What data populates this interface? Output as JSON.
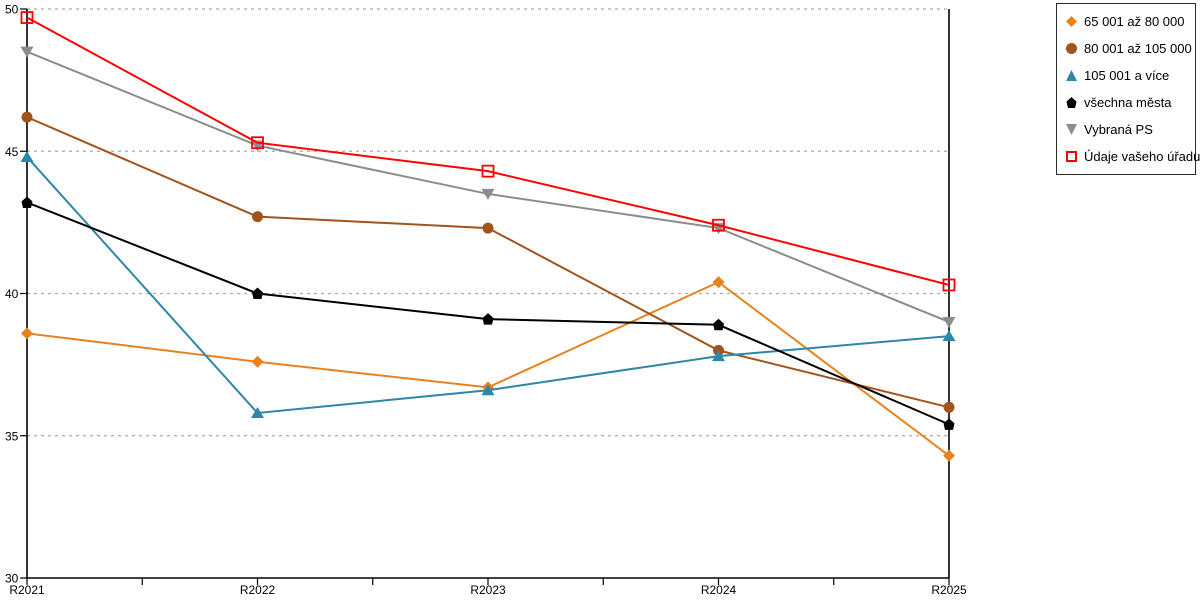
{
  "chart_data": {
    "type": "line",
    "title": "",
    "xlabel": "",
    "ylabel": "",
    "categories": [
      "R2021",
      "R2022",
      "R2023",
      "R2024",
      "R2025"
    ],
    "series": [
      {
        "name": "65 001 až 80 000",
        "marker": "diamond",
        "color": "#E8821E",
        "values": [
          38.6,
          37.6,
          36.7,
          40.4,
          34.3
        ]
      },
      {
        "name": "80 001 až 105 000",
        "marker": "circle",
        "color": "#A1541B",
        "values": [
          46.2,
          42.7,
          42.3,
          38.0,
          36.0
        ]
      },
      {
        "name": "105 001 a více",
        "marker": "triangle-up",
        "color": "#2E86A8",
        "values": [
          44.8,
          35.8,
          36.6,
          37.8,
          38.5
        ]
      },
      {
        "name": "všechna města",
        "marker": "pentagon",
        "color": "#000000",
        "values": [
          43.2,
          40.0,
          39.1,
          38.9,
          35.4
        ]
      },
      {
        "name": "Vybraná PS",
        "marker": "triangle-down",
        "color": "#8C8C8C",
        "values": [
          48.5,
          45.2,
          43.5,
          42.3,
          39.0
        ]
      },
      {
        "name": "Údaje vašeho úřadu",
        "marker": "open-square",
        "color": "#FF0000",
        "values": [
          49.7,
          45.3,
          44.3,
          42.4,
          40.3
        ]
      }
    ],
    "ylim": [
      30,
      50
    ],
    "yticks": [
      30,
      35,
      40,
      45,
      50
    ],
    "grid": "horizontal-dashed",
    "gridline_color": "#AAAAAA",
    "axis_color": "#000000",
    "legend_position": "top-right"
  }
}
